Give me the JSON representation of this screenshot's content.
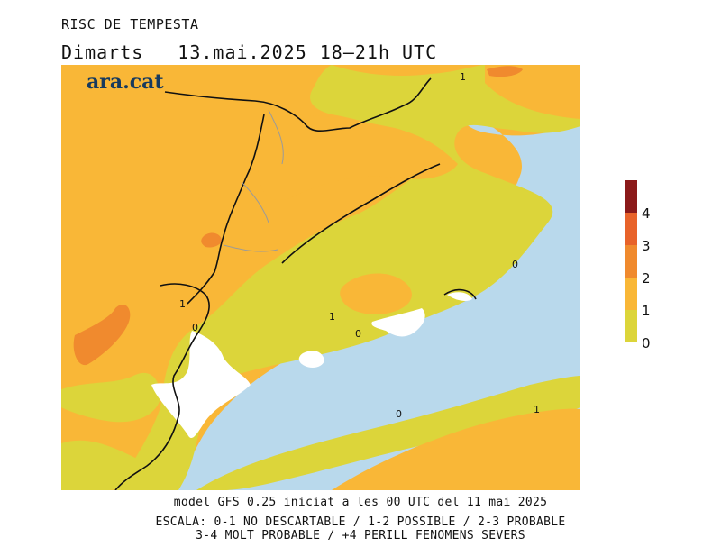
{
  "header": {
    "title": "RISC DE TEMPESTA",
    "day": "Dimarts",
    "date": "13.mai.2025",
    "time": "18–21h UTC"
  },
  "map": {
    "brand": "ara.cat",
    "contour_labels": [
      "1",
      "1",
      "0",
      "1",
      "0",
      "0",
      "0",
      "1"
    ]
  },
  "legend": {
    "levels": [
      "0",
      "1",
      "2",
      "3",
      "4"
    ],
    "colors": {
      "level_0_1": "#dcd53a",
      "level_1_2": "#f9b737",
      "level_2_3": "#f08a2e",
      "level_3_4": "#e8632a",
      "level_4_plus": "#8b1a1a",
      "sea": "#b9d9ec",
      "no_risk": "#ffffff"
    }
  },
  "footer": {
    "line1": "model GFS 0.25 iniciat a les 00 UTC del 11 mai 2025",
    "line2": "ESCALA: 0-1 NO DESCARTABLE / 1-2 POSSIBLE / 2-3 PROBABLE",
    "line3": "3-4 MOLT PROBABLE / +4 PERILL FENOMENS SEVERS"
  }
}
